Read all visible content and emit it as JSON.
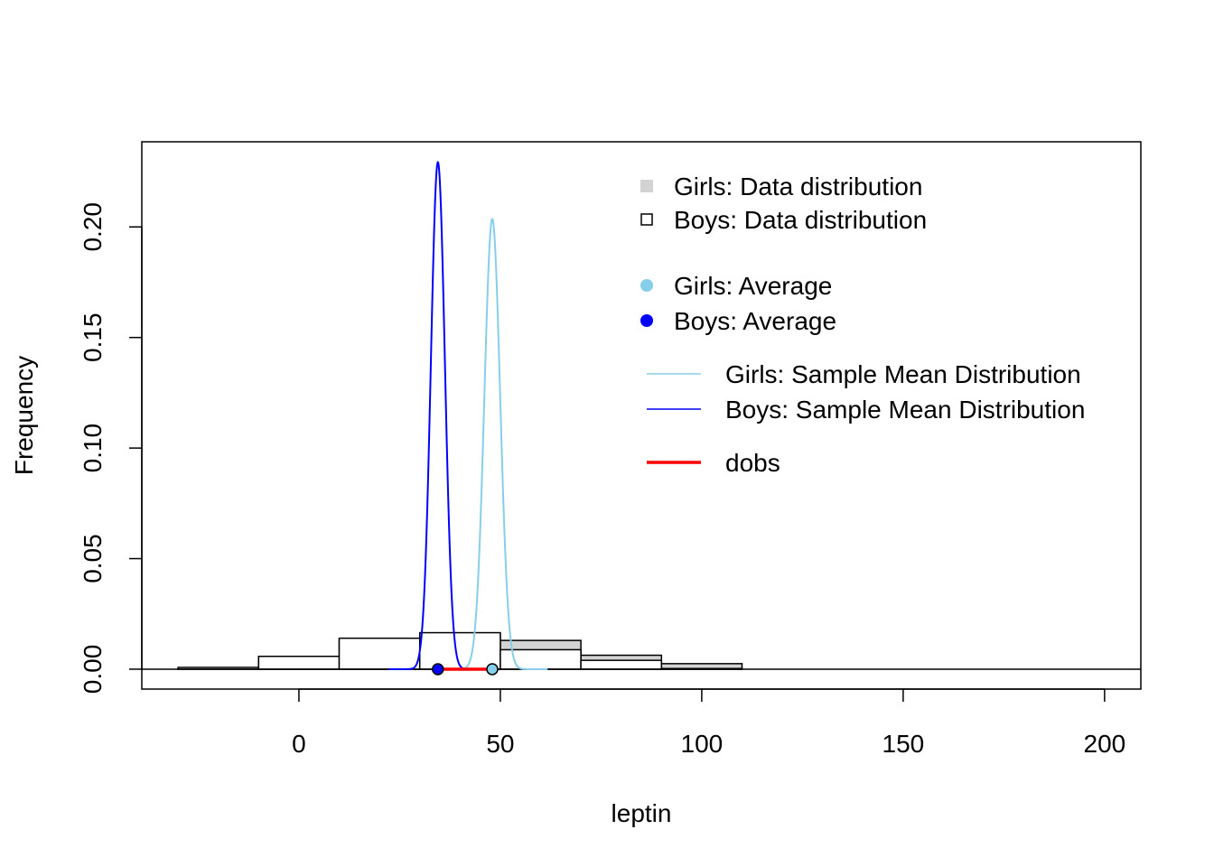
{
  "chart_data": {
    "type": "histogram",
    "xlabel": "leptin",
    "ylabel": "Frequency",
    "xlim": [
      -39,
      209
    ],
    "ylim": [
      -0.009,
      0.2385
    ],
    "x_ticks": [
      0,
      50,
      100,
      150,
      200
    ],
    "y_ticks": [
      0.0,
      0.05,
      0.1,
      0.15,
      0.2
    ],
    "x_tick_labels": [
      "0",
      "50",
      "100",
      "150",
      "200"
    ],
    "y_tick_labels": [
      "0.00",
      "0.05",
      "0.10",
      "0.15",
      "0.20"
    ],
    "histograms": [
      {
        "name": "Girls: Data distribution",
        "fill": "#d3d3d3",
        "bins": [
          {
            "x0": -30,
            "x1": -10,
            "y": 0.0003
          },
          {
            "x0": -10,
            "x1": 10,
            "y": 0.0058
          },
          {
            "x0": 10,
            "x1": 30,
            "y": 0.0135
          },
          {
            "x0": 30,
            "x1": 50,
            "y": 0.016
          },
          {
            "x0": 50,
            "x1": 70,
            "y": 0.013
          },
          {
            "x0": 70,
            "x1": 90,
            "y": 0.0063
          },
          {
            "x0": 90,
            "x1": 110,
            "y": 0.0025
          }
        ]
      },
      {
        "name": "Boys: Data distribution",
        "fill": "#ffffff",
        "bins": [
          {
            "x0": -30,
            "x1": -10,
            "y": 0.0008
          },
          {
            "x0": -10,
            "x1": 10,
            "y": 0.0058
          },
          {
            "x0": 10,
            "x1": 30,
            "y": 0.014
          },
          {
            "x0": 30,
            "x1": 50,
            "y": 0.0165
          },
          {
            "x0": 50,
            "x1": 70,
            "y": 0.0088
          },
          {
            "x0": 70,
            "x1": 90,
            "y": 0.004
          },
          {
            "x0": 90,
            "x1": 110,
            "y": 0.0003
          }
        ]
      }
    ],
    "curves": [
      {
        "name": "Girls: Sample Mean Distribution",
        "color": "#87ceeb",
        "mean": 48,
        "sd": 1.96
      },
      {
        "name": "Boys: Sample Mean Distribution",
        "color": "#0000ff",
        "mean": 34.5,
        "sd": 1.74
      }
    ],
    "averages": [
      {
        "name": "Girls: Average",
        "x": 48,
        "y": 0,
        "color": "#87ceeb"
      },
      {
        "name": "Boys: Average",
        "x": 34.5,
        "y": 0,
        "color": "#0000ff"
      }
    ],
    "dobs": {
      "name": "dobs",
      "x0": 34.5,
      "x1": 48,
      "y": 0,
      "color": "#ff0000"
    },
    "legend_position": "top-right",
    "legend": [
      {
        "label": "Girls: Data distribution",
        "symbol": "filled-square",
        "color": "#d3d3d3"
      },
      {
        "label": "Boys: Data distribution",
        "symbol": "open-square",
        "color": "#000000"
      },
      {
        "label": "Girls: Average",
        "symbol": "dot",
        "color": "#87ceeb"
      },
      {
        "label": "Boys: Average",
        "symbol": "dot",
        "color": "#0000ff"
      },
      {
        "label": "Girls: Sample Mean Distribution",
        "symbol": "line",
        "color": "#87ceeb"
      },
      {
        "label": "Boys: Sample Mean Distribution",
        "symbol": "line",
        "color": "#0000ff"
      },
      {
        "label": "dobs",
        "symbol": "thick-line",
        "color": "#ff0000"
      }
    ]
  }
}
